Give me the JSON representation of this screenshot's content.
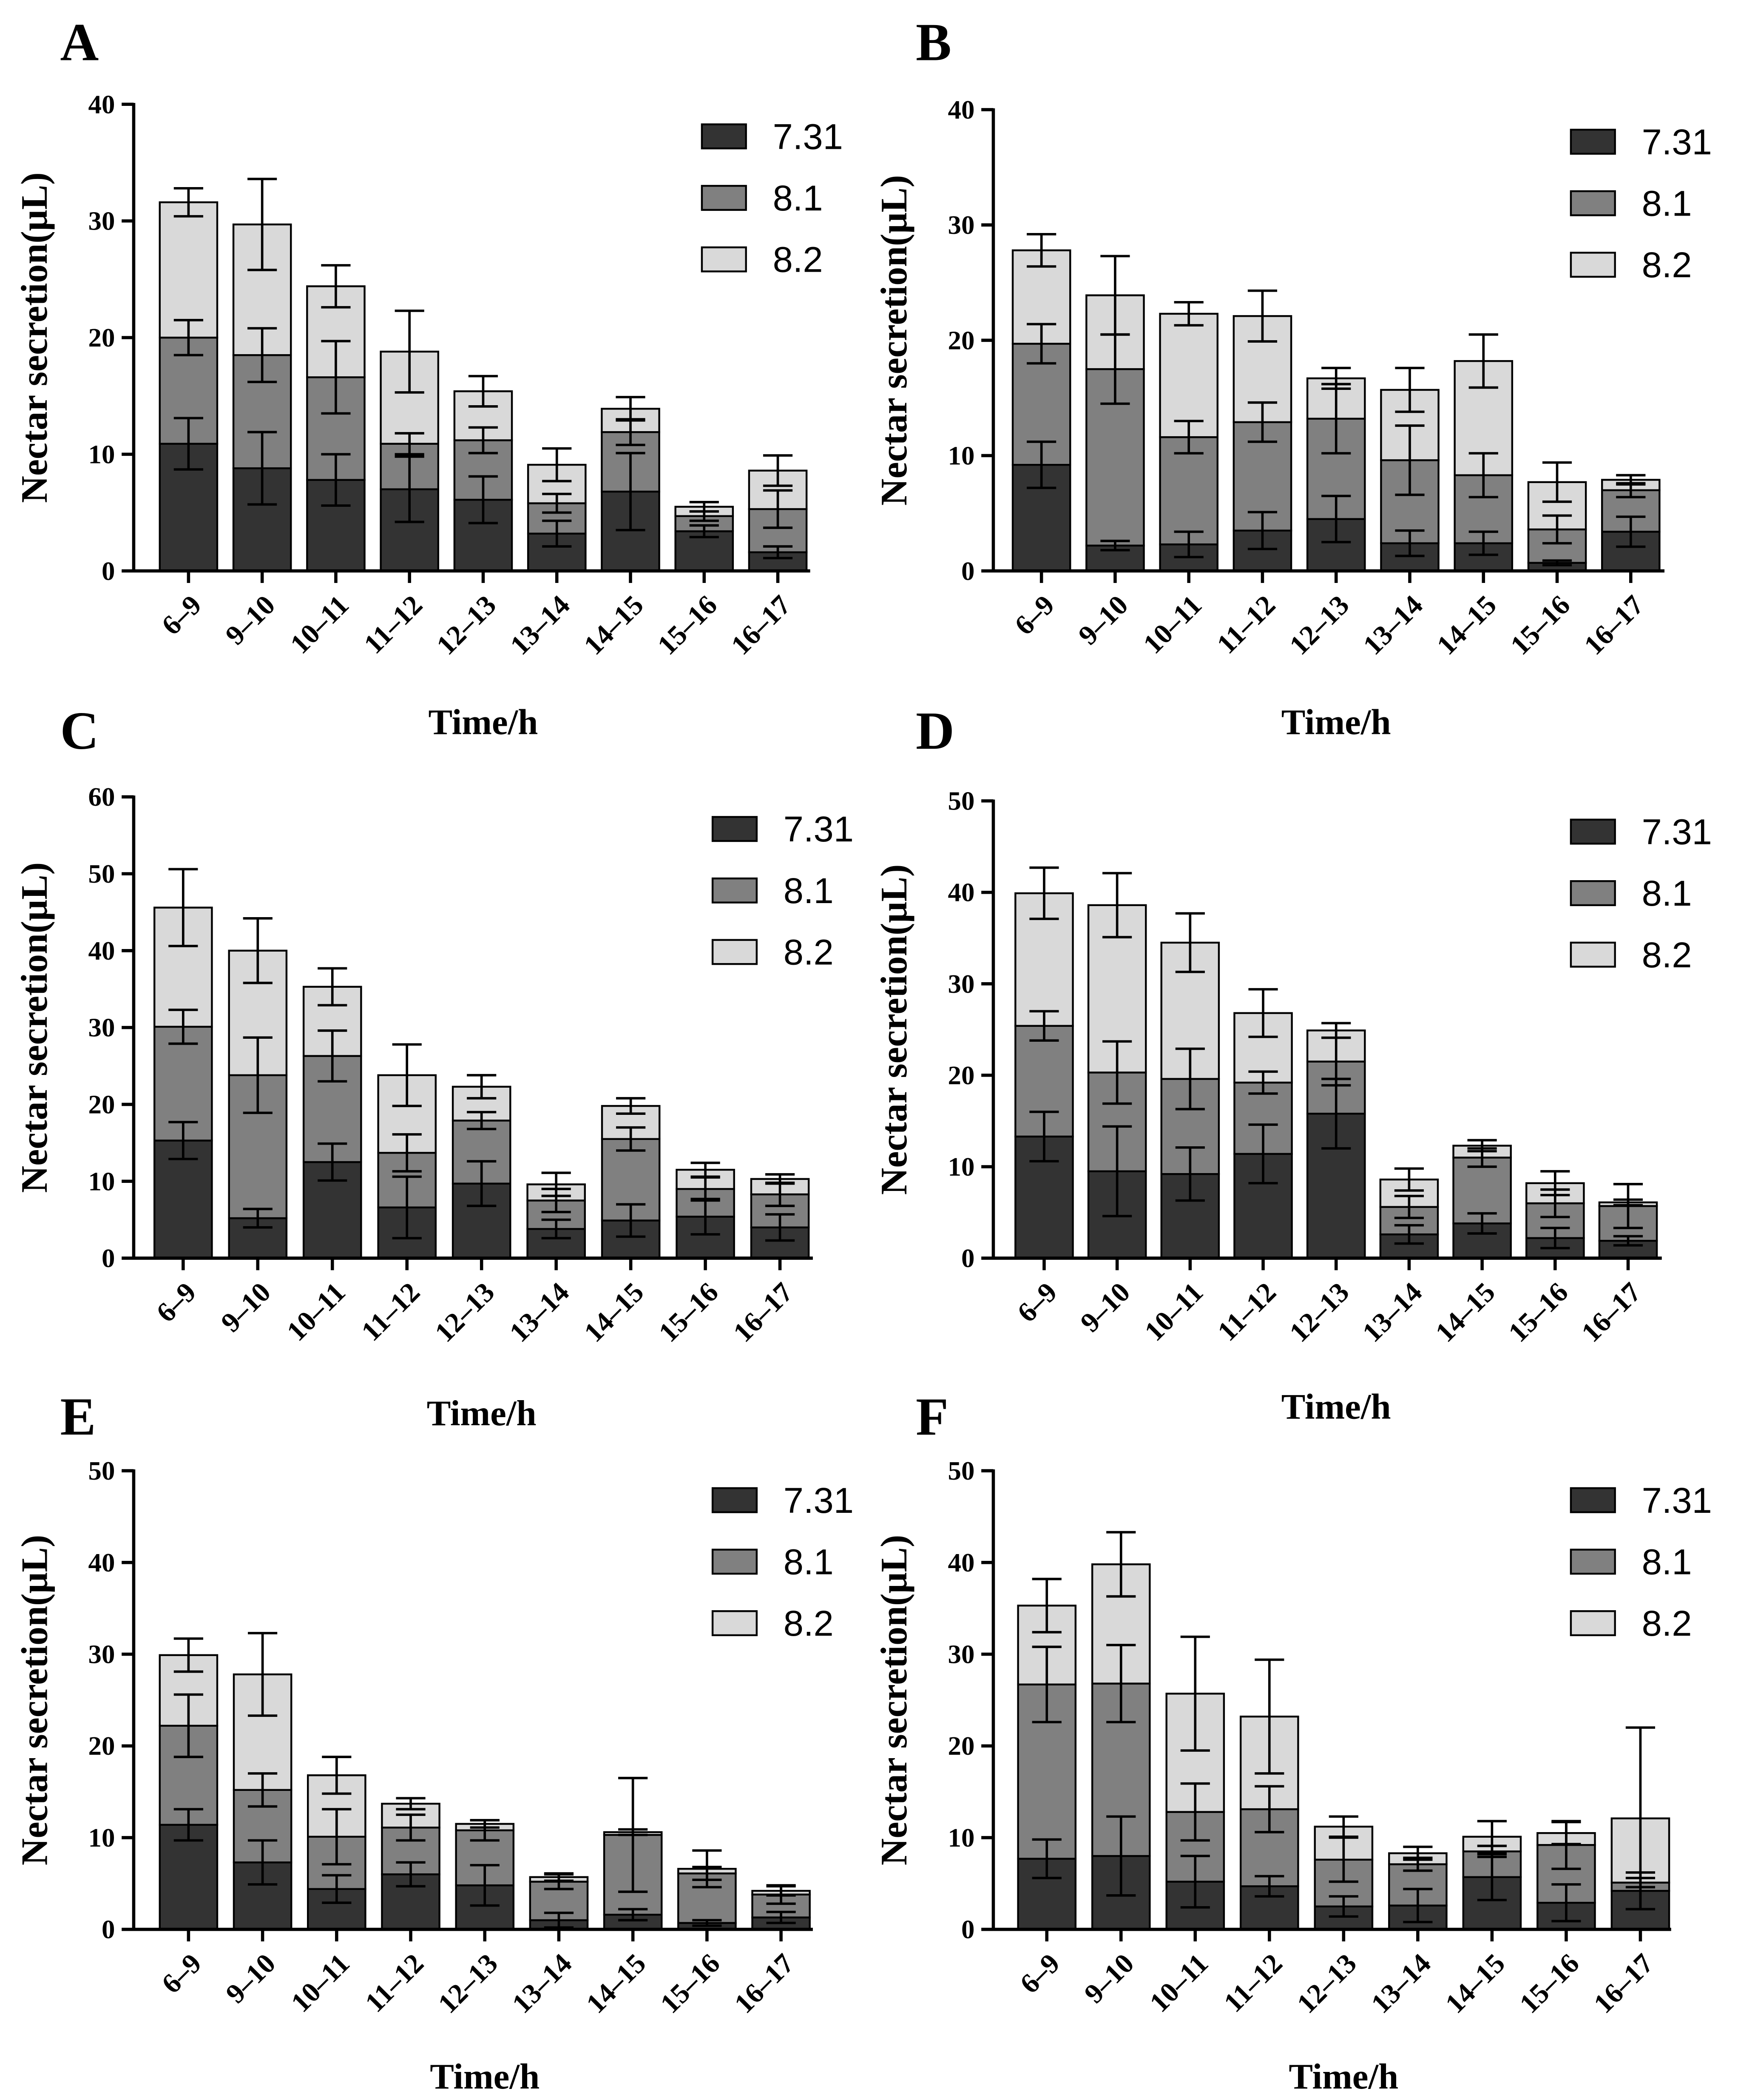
{
  "chart_data": [
    {
      "panel": "A",
      "type": "bar",
      "stacked": true,
      "categories": [
        "6–9",
        "9–10",
        "10–11",
        "11–12",
        "12–13",
        "13–14",
        "14–15",
        "15–16",
        "16–17"
      ],
      "series": [
        {
          "name": "7.31",
          "color": "#333333",
          "values": [
            10.9,
            8.8,
            7.8,
            7.0,
            6.1,
            3.2,
            6.8,
            3.4,
            1.6
          ],
          "errors": [
            2.2,
            3.1,
            2.2,
            2.8,
            2.0,
            1.1,
            3.3,
            0.5,
            0.5
          ]
        },
        {
          "name": "8.1",
          "color": "#808080",
          "values": [
            9.1,
            9.7,
            8.8,
            3.9,
            5.1,
            2.6,
            5.1,
            1.3,
            3.7
          ],
          "errors": [
            1.5,
            2.3,
            3.1,
            0.9,
            1.1,
            0.8,
            1.1,
            0.4,
            1.6
          ]
        },
        {
          "name": "8.2",
          "color": "#d9d9d9",
          "values": [
            11.6,
            11.2,
            7.8,
            7.9,
            4.2,
            3.3,
            2.0,
            0.8,
            3.3
          ],
          "errors": [
            1.2,
            3.9,
            1.8,
            3.5,
            1.3,
            1.4,
            1.0,
            0.4,
            1.3
          ]
        }
      ],
      "xlabel": "Time/h",
      "ylabel": "Nectar secretion(μL)",
      "ylim": [
        0,
        40
      ],
      "yticks": [
        0,
        10,
        20,
        30,
        40
      ],
      "legend": "top-right"
    },
    {
      "panel": "B",
      "type": "bar",
      "stacked": true,
      "categories": [
        "6–9",
        "9–10",
        "10–11",
        "11–12",
        "12–13",
        "13–14",
        "14–15",
        "15–16",
        "16–17"
      ],
      "series": [
        {
          "name": "7.31",
          "color": "#333333",
          "values": [
            9.2,
            2.2,
            2.3,
            3.5,
            4.5,
            2.4,
            2.4,
            0.7,
            3.4
          ],
          "errors": [
            2.0,
            0.4,
            1.1,
            1.6,
            2.0,
            1.1,
            1.0,
            0.2,
            1.3
          ]
        },
        {
          "name": "8.1",
          "color": "#808080",
          "values": [
            10.5,
            15.3,
            9.3,
            9.4,
            8.7,
            7.2,
            5.9,
            2.9,
            3.6
          ],
          "errors": [
            1.7,
            3.0,
            1.4,
            1.7,
            3.0,
            3.0,
            1.9,
            1.2,
            0.6
          ]
        },
        {
          "name": "8.2",
          "color": "#d9d9d9",
          "values": [
            8.1,
            6.4,
            10.7,
            9.2,
            3.5,
            6.1,
            9.9,
            4.1,
            0.9
          ],
          "errors": [
            1.4,
            3.4,
            1.0,
            2.2,
            0.9,
            1.9,
            2.3,
            1.7,
            0.4
          ]
        }
      ],
      "xlabel": "Time/h",
      "ylabel": "Nectar secretion(μL)",
      "ylim": [
        0,
        40
      ],
      "yticks": [
        0,
        10,
        20,
        30,
        40
      ],
      "legend": "top-right"
    },
    {
      "panel": "C",
      "type": "bar",
      "stacked": true,
      "categories": [
        "6–9",
        "9–10",
        "10–11",
        "11–12",
        "12–13",
        "13–14",
        "14–15",
        "15–16",
        "16–17"
      ],
      "series": [
        {
          "name": "7.31",
          "color": "#333333",
          "values": [
            15.3,
            5.2,
            12.5,
            6.6,
            9.7,
            3.8,
            4.9,
            5.4,
            4.0
          ],
          "errors": [
            2.4,
            1.2,
            2.4,
            4.0,
            2.9,
            1.2,
            2.1,
            2.3,
            1.7
          ]
        },
        {
          "name": "8.1",
          "color": "#808080",
          "values": [
            14.8,
            18.6,
            13.8,
            7.1,
            8.2,
            3.7,
            10.6,
            3.6,
            4.3
          ],
          "errors": [
            2.2,
            4.9,
            3.3,
            2.4,
            1.1,
            1.5,
            1.5,
            1.5,
            1.5
          ]
        },
        {
          "name": "8.2",
          "color": "#d9d9d9",
          "values": [
            15.5,
            16.2,
            9.0,
            10.1,
            4.4,
            2.1,
            4.3,
            2.5,
            2.0
          ],
          "errors": [
            5.0,
            4.2,
            2.4,
            4.0,
            1.5,
            1.5,
            1.0,
            0.9,
            0.6
          ]
        }
      ],
      "xlabel": "Time/h",
      "ylabel": "Nectar secretion(μL)",
      "ylim": [
        0,
        60
      ],
      "yticks": [
        0,
        10,
        20,
        30,
        40,
        50,
        60
      ],
      "legend": "top-right"
    },
    {
      "panel": "D",
      "type": "bar",
      "stacked": true,
      "categories": [
        "6–9",
        "9–10",
        "10–11",
        "11–12",
        "12–13",
        "13–14",
        "14–15",
        "15–16",
        "16–17"
      ],
      "series": [
        {
          "name": "7.31",
          "color": "#333333",
          "values": [
            13.3,
            9.5,
            9.2,
            11.4,
            15.8,
            2.6,
            3.8,
            2.2,
            1.9
          ],
          "errors": [
            2.7,
            4.9,
            2.9,
            3.2,
            3.8,
            1.0,
            1.1,
            1.1,
            0.5
          ]
        },
        {
          "name": "8.1",
          "color": "#808080",
          "values": [
            12.1,
            10.8,
            10.4,
            7.8,
            5.7,
            3.0,
            7.2,
            3.8,
            3.8
          ],
          "errors": [
            1.6,
            3.4,
            3.3,
            1.2,
            2.6,
            1.2,
            1.0,
            1.5,
            2.4
          ]
        },
        {
          "name": "8.2",
          "color": "#d9d9d9",
          "values": [
            14.5,
            18.3,
            14.9,
            7.6,
            3.4,
            3.0,
            1.3,
            2.2,
            0.4
          ],
          "errors": [
            2.8,
            3.5,
            3.2,
            2.6,
            0.8,
            1.2,
            0.6,
            1.3,
            0.3
          ]
        }
      ],
      "xlabel": "Time/h",
      "ylabel": "Nectar secretion(μL)",
      "ylim": [
        0,
        50
      ],
      "yticks": [
        0,
        10,
        20,
        30,
        40,
        50
      ],
      "legend": "top-right"
    },
    {
      "panel": "E",
      "type": "bar",
      "stacked": true,
      "categories": [
        "6–9",
        "9–10",
        "10–11",
        "11–12",
        "12–13",
        "13–14",
        "14–15",
        "15–16",
        "16–17"
      ],
      "series": [
        {
          "name": "7.31",
          "color": "#333333",
          "values": [
            11.4,
            7.3,
            4.4,
            6.0,
            4.8,
            1.0,
            1.6,
            0.7,
            1.3
          ],
          "errors": [
            1.7,
            2.4,
            1.5,
            1.3,
            2.2,
            0.8,
            0.6,
            0.3,
            0.6
          ]
        },
        {
          "name": "8.1",
          "color": "#808080",
          "values": [
            10.8,
            7.9,
            5.7,
            5.1,
            6.0,
            4.2,
            8.7,
            5.4,
            2.5
          ],
          "errors": [
            3.4,
            1.8,
            3.0,
            1.4,
            1.1,
            0.8,
            6.2,
            0.7,
            1.0
          ]
        },
        {
          "name": "8.2",
          "color": "#d9d9d9",
          "values": [
            7.7,
            12.6,
            6.7,
            2.6,
            0.7,
            0.5,
            0.3,
            0.5,
            0.4
          ],
          "errors": [
            1.8,
            4.5,
            2.0,
            0.6,
            0.4,
            0.4,
            0.3,
            2.0,
            0.5
          ]
        }
      ],
      "xlabel": "Time/h",
      "ylabel": "Nectar secretion(μL)",
      "ylim": [
        0,
        50
      ],
      "yticks": [
        0,
        10,
        20,
        30,
        40,
        50
      ],
      "legend": "top-right"
    },
    {
      "panel": "F",
      "type": "bar",
      "stacked": true,
      "categories": [
        "6–9",
        "9–10",
        "10–11",
        "11–12",
        "12–13",
        "13–14",
        "14–15",
        "15–16",
        "16–17"
      ],
      "series": [
        {
          "name": "7.31",
          "color": "#333333",
          "values": [
            7.7,
            8.0,
            5.2,
            4.7,
            2.5,
            2.6,
            5.7,
            2.9,
            4.2
          ],
          "errors": [
            2.1,
            4.3,
            2.8,
            1.1,
            1.1,
            1.8,
            2.5,
            2.0,
            2.0
          ]
        },
        {
          "name": "8.1",
          "color": "#808080",
          "values": [
            19.0,
            18.8,
            7.6,
            8.4,
            5.1,
            4.5,
            2.8,
            6.3,
            0.9
          ],
          "errors": [
            4.1,
            4.2,
            3.1,
            2.5,
            2.4,
            0.7,
            0.6,
            2.6,
            0.5
          ]
        },
        {
          "name": "8.2",
          "color": "#d9d9d9",
          "values": [
            8.6,
            13.0,
            12.9,
            10.1,
            3.6,
            1.2,
            1.6,
            1.3,
            7.0
          ],
          "errors": [
            2.9,
            3.5,
            6.2,
            6.2,
            1.1,
            0.7,
            1.7,
            1.2,
            9.9
          ]
        }
      ],
      "xlabel": "Time/h",
      "ylabel": "Nectar secretion(μL)",
      "ylim": [
        0,
        50
      ],
      "yticks": [
        0,
        10,
        20,
        30,
        40,
        50
      ],
      "legend": "top-right"
    }
  ]
}
